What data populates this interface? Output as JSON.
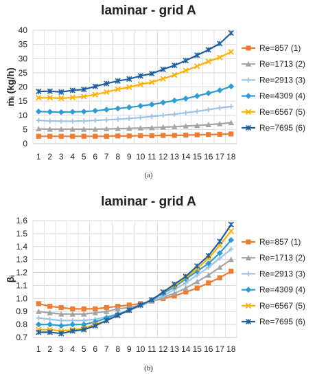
{
  "chart_data": [
    {
      "type": "line",
      "title": "laminar - grid A",
      "ylabel": "ṁᵢ (kg/h)",
      "xlabel": "",
      "caption": "(a)",
      "ylim": [
        0,
        40
      ],
      "yticks": [
        "0",
        "5",
        "10",
        "15",
        "20",
        "25",
        "30",
        "35",
        "40"
      ],
      "categories": [
        "1",
        "2",
        "3",
        "4",
        "5",
        "6",
        "7",
        "8",
        "9",
        "10",
        "11",
        "12",
        "13",
        "14",
        "15",
        "16",
        "17",
        "18"
      ],
      "grid": true,
      "legend_position": "right",
      "series": [
        {
          "name": "Re=857 (1)",
          "color": "#ED7D31",
          "marker": "square",
          "values": [
            2.6,
            2.6,
            2.6,
            2.6,
            2.6,
            2.6,
            2.6,
            2.7,
            2.7,
            2.8,
            2.8,
            2.9,
            2.9,
            3.0,
            3.1,
            3.2,
            3.3,
            3.4
          ]
        },
        {
          "name": "Re=1713 (2)",
          "color": "#A5A5A5",
          "marker": "triangle",
          "values": [
            5.2,
            5.1,
            5.1,
            5.1,
            5.1,
            5.1,
            5.2,
            5.3,
            5.4,
            5.5,
            5.6,
            5.8,
            6.0,
            6.2,
            6.4,
            6.7,
            7.0,
            7.4
          ]
        },
        {
          "name": "Re=2913 (3)",
          "color": "#9DC3E6",
          "marker": "plus",
          "values": [
            8.2,
            8.0,
            7.9,
            7.9,
            8.0,
            8.2,
            8.4,
            8.6,
            8.9,
            9.2,
            9.6,
            10.0,
            10.4,
            10.9,
            11.4,
            12.0,
            12.6,
            13.1
          ]
        },
        {
          "name": "Re=4309 (4)",
          "color": "#2E9BD6",
          "marker": "diamond",
          "values": [
            11.3,
            11.2,
            11.1,
            11.2,
            11.3,
            11.6,
            12.0,
            12.4,
            12.8,
            13.3,
            13.8,
            14.5,
            15.2,
            15.9,
            16.8,
            17.8,
            18.8,
            20.2
          ]
        },
        {
          "name": "Re=6567 (5)",
          "color": "#FFB000",
          "marker": "x",
          "values": [
            16.2,
            16.2,
            16.0,
            16.3,
            16.6,
            17.3,
            18.2,
            19.2,
            19.9,
            20.9,
            21.7,
            22.9,
            24.2,
            25.8,
            27.3,
            29.0,
            30.4,
            32.4
          ]
        },
        {
          "name": "Re=7695 (6)",
          "color": "#1F5F9F",
          "marker": "star",
          "values": [
            18.4,
            18.5,
            18.2,
            18.8,
            19.1,
            20.2,
            21.2,
            22.1,
            22.8,
            23.9,
            24.7,
            26.2,
            27.6,
            29.3,
            31.2,
            33.1,
            35.3,
            39.0
          ]
        }
      ]
    },
    {
      "type": "line",
      "title": "laminar - grid A",
      "ylabel": "βᵢ",
      "xlabel": "",
      "caption": "(b)",
      "ylim": [
        0.7,
        1.6
      ],
      "yticks": [
        "0.7",
        "0.8",
        "0.9",
        "1.0",
        "1.1",
        "1.2",
        "1.3",
        "1.4",
        "1.5",
        "1.6"
      ],
      "categories": [
        "1",
        "2",
        "3",
        "4",
        "5",
        "6",
        "7",
        "8",
        "9",
        "10",
        "11",
        "12",
        "13",
        "14",
        "15",
        "16",
        "17",
        "18"
      ],
      "grid": true,
      "legend_position": "right",
      "series": [
        {
          "name": "Re=857 (1)",
          "color": "#ED7D31",
          "marker": "square",
          "values": [
            0.96,
            0.94,
            0.93,
            0.92,
            0.92,
            0.92,
            0.93,
            0.94,
            0.95,
            0.96,
            0.98,
            1.0,
            1.02,
            1.05,
            1.08,
            1.12,
            1.16,
            1.21
          ]
        },
        {
          "name": "Re=1713 (2)",
          "color": "#A5A5A5",
          "marker": "triangle",
          "values": [
            0.9,
            0.89,
            0.88,
            0.88,
            0.88,
            0.89,
            0.9,
            0.92,
            0.93,
            0.95,
            0.98,
            1.01,
            1.04,
            1.08,
            1.13,
            1.18,
            1.24,
            1.3
          ]
        },
        {
          "name": "Re=2913 (3)",
          "color": "#9DC3E6",
          "marker": "plus",
          "values": [
            0.85,
            0.84,
            0.83,
            0.83,
            0.83,
            0.84,
            0.86,
            0.88,
            0.91,
            0.94,
            0.98,
            1.02,
            1.07,
            1.12,
            1.18,
            1.24,
            1.31,
            1.38
          ]
        },
        {
          "name": "Re=4309 (4)",
          "color": "#2E9BD6",
          "marker": "diamond",
          "values": [
            0.8,
            0.8,
            0.79,
            0.8,
            0.8,
            0.82,
            0.85,
            0.88,
            0.91,
            0.95,
            0.99,
            1.04,
            1.09,
            1.15,
            1.21,
            1.27,
            1.35,
            1.45
          ]
        },
        {
          "name": "Re=6567 (5)",
          "color": "#FFB000",
          "marker": "x",
          "values": [
            0.76,
            0.76,
            0.75,
            0.76,
            0.77,
            0.8,
            0.83,
            0.87,
            0.91,
            0.95,
            0.99,
            1.05,
            1.1,
            1.16,
            1.23,
            1.31,
            1.41,
            1.52
          ]
        },
        {
          "name": "Re=7695 (6)",
          "color": "#1F5F9F",
          "marker": "star",
          "values": [
            0.74,
            0.74,
            0.73,
            0.75,
            0.76,
            0.79,
            0.83,
            0.87,
            0.91,
            0.95,
            0.99,
            1.05,
            1.11,
            1.17,
            1.25,
            1.33,
            1.44,
            1.57
          ]
        }
      ]
    }
  ]
}
